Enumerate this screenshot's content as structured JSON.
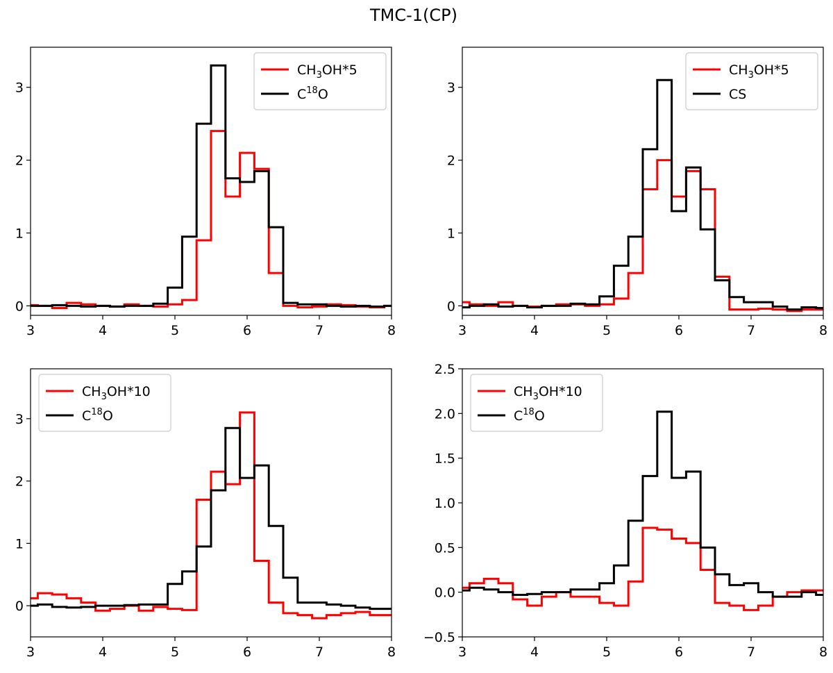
{
  "figure": {
    "title": "TMC-1(CP)"
  },
  "colors": {
    "red": "#ff0000",
    "black": "#000000",
    "legend_border": "#cccccc"
  },
  "chart_data": [
    {
      "type": "line",
      "drawstyle": "steps",
      "xlim": [
        3,
        8
      ],
      "ylim": [
        -0.13,
        3.55
      ],
      "xticks": [
        "3",
        "4",
        "5",
        "6",
        "7",
        "8"
      ],
      "yticks": [
        "0",
        "1",
        "2",
        "3"
      ],
      "ytick_values": [
        0,
        1,
        2,
        3
      ],
      "legend_position": "top-right",
      "series": [
        {
          "name": "CH3OH*5",
          "label_base": "CH",
          "label_sub": "3",
          "label_rest": "OH*5",
          "color": "red",
          "x": [
            3.0,
            3.2,
            3.4,
            3.6,
            3.8,
            4.0,
            4.2,
            4.4,
            4.6,
            4.8,
            5.0,
            5.2,
            5.4,
            5.6,
            5.8,
            6.0,
            6.2,
            6.4,
            6.6,
            6.8,
            7.0,
            7.2,
            7.4,
            7.6,
            7.8,
            8.0
          ],
          "y": [
            0.01,
            0.0,
            -0.03,
            0.04,
            0.02,
            0.0,
            -0.01,
            0.02,
            0.0,
            -0.01,
            0.02,
            0.08,
            0.9,
            2.4,
            1.5,
            2.1,
            1.88,
            0.45,
            0.0,
            -0.02,
            -0.01,
            0.02,
            0.01,
            -0.01,
            -0.02,
            0.0
          ]
        },
        {
          "name": "C18O",
          "label_base": "C",
          "label_sup": "18",
          "label_rest": "O",
          "color": "black",
          "x": [
            3.0,
            3.2,
            3.4,
            3.6,
            3.8,
            4.0,
            4.2,
            4.4,
            4.6,
            4.8,
            5.0,
            5.2,
            5.4,
            5.6,
            5.8,
            6.0,
            6.2,
            6.4,
            6.6,
            6.8,
            7.0,
            7.2,
            7.4,
            7.6,
            7.8,
            8.0
          ],
          "y": [
            0.0,
            0.0,
            0.01,
            0.0,
            -0.01,
            0.0,
            -0.01,
            0.0,
            0.0,
            0.03,
            0.25,
            0.95,
            2.5,
            3.3,
            1.75,
            1.7,
            1.85,
            1.08,
            0.04,
            0.02,
            0.02,
            0.0,
            -0.01,
            0.0,
            -0.01,
            0.0
          ]
        }
      ]
    },
    {
      "type": "line",
      "drawstyle": "steps",
      "xlim": [
        3,
        8
      ],
      "ylim": [
        -0.13,
        3.55
      ],
      "xticks": [
        "3",
        "4",
        "5",
        "6",
        "7",
        "8"
      ],
      "yticks": [
        "0",
        "1",
        "2",
        "3"
      ],
      "ytick_values": [
        0,
        1,
        2,
        3
      ],
      "legend_position": "top-right",
      "series": [
        {
          "name": "CH3OH*5",
          "label_base": "CH",
          "label_sub": "3",
          "label_rest": "OH*5",
          "color": "red",
          "x": [
            3.0,
            3.2,
            3.4,
            3.6,
            3.8,
            4.0,
            4.2,
            4.4,
            4.6,
            4.8,
            5.0,
            5.2,
            5.4,
            5.6,
            5.8,
            6.0,
            6.2,
            6.4,
            6.6,
            6.8,
            7.0,
            7.2,
            7.4,
            7.6,
            7.8,
            8.0
          ],
          "y": [
            0.05,
            0.02,
            0.0,
            0.05,
            0.0,
            -0.01,
            0.0,
            0.02,
            0.02,
            0.0,
            0.02,
            0.1,
            0.45,
            1.6,
            2.0,
            1.5,
            1.85,
            1.6,
            0.4,
            -0.05,
            -0.05,
            -0.04,
            -0.05,
            -0.07,
            -0.05,
            -0.05
          ]
        },
        {
          "name": "CS",
          "label_base": "CS",
          "color": "black",
          "x": [
            3.0,
            3.2,
            3.4,
            3.6,
            3.8,
            4.0,
            4.2,
            4.4,
            4.6,
            4.8,
            5.0,
            5.2,
            5.4,
            5.6,
            5.8,
            6.0,
            6.2,
            6.4,
            6.6,
            6.8,
            7.0,
            7.2,
            7.4,
            7.6,
            7.8,
            8.0
          ],
          "y": [
            -0.02,
            0.0,
            0.02,
            -0.01,
            0.0,
            -0.02,
            0.0,
            0.0,
            0.03,
            0.02,
            0.13,
            0.55,
            0.95,
            2.15,
            3.1,
            1.3,
            1.9,
            1.05,
            0.35,
            0.12,
            0.05,
            0.05,
            -0.01,
            -0.05,
            -0.02,
            -0.03
          ]
        }
      ]
    },
    {
      "type": "line",
      "drawstyle": "steps",
      "xlim": [
        3,
        8
      ],
      "ylim": [
        -0.5,
        3.8
      ],
      "xticks": [
        "3",
        "4",
        "5",
        "6",
        "7",
        "8"
      ],
      "yticks": [
        "0",
        "1",
        "2",
        "3"
      ],
      "ytick_values": [
        0,
        1,
        2,
        3
      ],
      "legend_position": "top-left",
      "series": [
        {
          "name": "CH3OH*10",
          "label_base": "CH",
          "label_sub": "3",
          "label_rest": "OH*10",
          "color": "red",
          "x": [
            3.0,
            3.2,
            3.4,
            3.6,
            3.8,
            4.0,
            4.2,
            4.4,
            4.6,
            4.8,
            5.0,
            5.2,
            5.4,
            5.6,
            5.8,
            6.0,
            6.2,
            6.4,
            6.6,
            6.8,
            7.0,
            7.2,
            7.4,
            7.6,
            7.8,
            8.0
          ],
          "y": [
            0.12,
            0.2,
            0.18,
            0.12,
            0.05,
            -0.08,
            -0.05,
            0.0,
            -0.08,
            -0.02,
            -0.05,
            -0.07,
            1.7,
            2.15,
            1.95,
            3.1,
            0.72,
            0.05,
            -0.12,
            -0.15,
            -0.2,
            -0.15,
            -0.12,
            -0.1,
            -0.15,
            -0.15
          ]
        },
        {
          "name": "C18O",
          "label_base": "C",
          "label_sup": "18",
          "label_rest": "O",
          "color": "black",
          "x": [
            3.0,
            3.2,
            3.4,
            3.6,
            3.8,
            4.0,
            4.2,
            4.4,
            4.6,
            4.8,
            5.0,
            5.2,
            5.4,
            5.6,
            5.8,
            6.0,
            6.2,
            6.4,
            6.6,
            6.8,
            7.0,
            7.2,
            7.4,
            7.6,
            7.8,
            8.0
          ],
          "y": [
            0.0,
            0.02,
            -0.02,
            -0.03,
            -0.02,
            0.0,
            0.0,
            0.01,
            0.02,
            0.02,
            0.35,
            0.55,
            0.95,
            1.85,
            2.85,
            2.05,
            2.25,
            1.28,
            0.45,
            0.05,
            0.05,
            0.02,
            0.0,
            -0.03,
            -0.05,
            -0.05
          ]
        }
      ]
    },
    {
      "type": "line",
      "drawstyle": "steps",
      "xlim": [
        3,
        8
      ],
      "ylim": [
        -0.5,
        2.5
      ],
      "xticks": [
        "3",
        "4",
        "5",
        "6",
        "7",
        "8"
      ],
      "yticks": [
        "−0.5",
        "0.0",
        "0.5",
        "1.0",
        "1.5",
        "2.0",
        "2.5"
      ],
      "ytick_values": [
        -0.5,
        0.0,
        0.5,
        1.0,
        1.5,
        2.0,
        2.5
      ],
      "legend_position": "top-left",
      "series": [
        {
          "name": "CH3OH*10",
          "label_base": "CH",
          "label_sub": "3",
          "label_rest": "OH*10",
          "color": "red",
          "x": [
            3.0,
            3.2,
            3.4,
            3.6,
            3.8,
            4.0,
            4.2,
            4.4,
            4.6,
            4.8,
            5.0,
            5.2,
            5.4,
            5.6,
            5.8,
            6.0,
            6.2,
            6.4,
            6.6,
            6.8,
            7.0,
            7.2,
            7.4,
            7.6,
            7.8,
            8.0
          ],
          "y": [
            0.05,
            0.1,
            0.15,
            0.1,
            -0.08,
            -0.15,
            -0.05,
            0.0,
            -0.05,
            -0.05,
            -0.12,
            -0.15,
            0.12,
            0.72,
            0.7,
            0.6,
            0.55,
            0.25,
            -0.12,
            -0.15,
            -0.2,
            -0.15,
            -0.05,
            0.0,
            0.02,
            0.02
          ]
        },
        {
          "name": "C18O",
          "label_base": "C",
          "label_sup": "18",
          "label_rest": "O",
          "color": "black",
          "x": [
            3.0,
            3.2,
            3.4,
            3.6,
            3.8,
            4.0,
            4.2,
            4.4,
            4.6,
            4.8,
            5.0,
            5.2,
            5.4,
            5.6,
            5.8,
            6.0,
            6.2,
            6.4,
            6.6,
            6.8,
            7.0,
            7.2,
            7.4,
            7.6,
            7.8,
            8.0
          ],
          "y": [
            0.02,
            0.05,
            0.03,
            0.0,
            -0.03,
            -0.02,
            0.0,
            0.0,
            0.03,
            0.03,
            0.1,
            0.3,
            0.8,
            1.3,
            2.02,
            1.28,
            1.35,
            0.5,
            0.2,
            0.08,
            0.1,
            0.0,
            -0.05,
            -0.05,
            0.0,
            -0.03
          ]
        }
      ]
    }
  ]
}
